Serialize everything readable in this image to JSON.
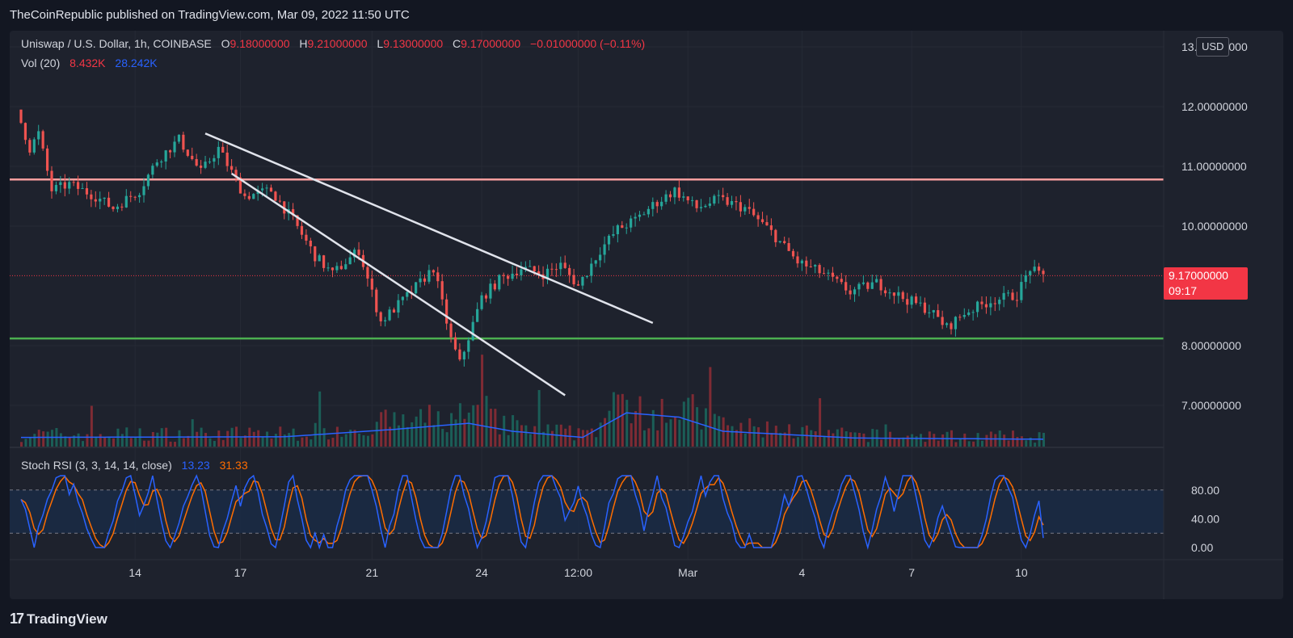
{
  "header": {
    "published_text": "TheCoinRepublic published on TradingView.com, Mar 09, 2022 11:50 UTC"
  },
  "legend": {
    "symbol": "Uniswap / U.S. Dollar, 1h, COINBASE",
    "open_label": "O",
    "open": "9.18000000",
    "high_label": "H",
    "high": "9.21000000",
    "low_label": "L",
    "low": "9.13000000",
    "close_label": "C",
    "close": "9.17000000",
    "change": "−0.01000000 (−0.11%)",
    "vol_label": "Vol (20)",
    "vol_value": "8.432K",
    "vol_ma": "28.242K",
    "stoch_label": "Stoch RSI (3, 3, 14, 14, close)",
    "stoch_k": "13.23",
    "stoch_d": "31.33"
  },
  "price_scale": {
    "currency": "USD",
    "current_price": "9.17000000",
    "countdown": "09:17"
  },
  "footer": {
    "brand": "TradingView",
    "logo_glyph": "17"
  },
  "colors": {
    "background": "#131722",
    "pane": "#1e222d",
    "up": "#26a69a",
    "down": "#ef5350",
    "resistance": "#ff9e9e",
    "support": "#4caf50",
    "current_price_line": "#f23645",
    "volume_ma": "#2962ff",
    "stoch_k": "#2962ff",
    "stoch_d": "#ff6d00",
    "trendline": "#e0e3eb"
  },
  "chart_data": [
    {
      "type": "candlestick",
      "series_name": "Uniswap / U.S. Dollar, 1h, COINBASE",
      "x_ticks": [
        "14",
        "17",
        "21",
        "24",
        "12:00",
        "Mar",
        "4",
        "7",
        "10"
      ],
      "y_ticks": [
        "13.00000000",
        "12.00000000",
        "11.00000000",
        "10.00000000",
        "8.00000000",
        "7.00000000"
      ],
      "ylim": [
        6.5,
        13.2
      ],
      "price_path": [
        {
          "t": 0,
          "p": 11.95
        },
        {
          "t": 3,
          "p": 11.3
        },
        {
          "t": 5,
          "p": 11.55
        },
        {
          "t": 8,
          "p": 10.6
        },
        {
          "t": 12,
          "p": 10.7
        },
        {
          "t": 18,
          "p": 10.5
        },
        {
          "t": 22,
          "p": 10.3
        },
        {
          "t": 28,
          "p": 10.6
        },
        {
          "t": 32,
          "p": 11.1
        },
        {
          "t": 37,
          "p": 11.45
        },
        {
          "t": 42,
          "p": 10.9
        },
        {
          "t": 46,
          "p": 11.3
        },
        {
          "t": 52,
          "p": 10.5
        },
        {
          "t": 58,
          "p": 10.6
        },
        {
          "t": 63,
          "p": 10.1
        },
        {
          "t": 68,
          "p": 9.5
        },
        {
          "t": 72,
          "p": 9.2
        },
        {
          "t": 78,
          "p": 9.6
        },
        {
          "t": 83,
          "p": 8.4
        },
        {
          "t": 90,
          "p": 8.9
        },
        {
          "t": 95,
          "p": 9.3
        },
        {
          "t": 99,
          "p": 8.1
        },
        {
          "t": 101,
          "p": 7.7
        },
        {
          "t": 106,
          "p": 8.8
        },
        {
          "t": 110,
          "p": 9.1
        },
        {
          "t": 115,
          "p": 9.3
        },
        {
          "t": 120,
          "p": 9.2
        },
        {
          "t": 124,
          "p": 9.35
        },
        {
          "t": 128,
          "p": 9.0
        },
        {
          "t": 133,
          "p": 9.6
        },
        {
          "t": 137,
          "p": 9.95
        },
        {
          "t": 141,
          "p": 10.1
        },
        {
          "t": 145,
          "p": 10.35
        },
        {
          "t": 150,
          "p": 10.6
        },
        {
          "t": 155,
          "p": 10.3
        },
        {
          "t": 160,
          "p": 10.45
        },
        {
          "t": 166,
          "p": 10.3
        },
        {
          "t": 172,
          "p": 9.9
        },
        {
          "t": 178,
          "p": 9.4
        },
        {
          "t": 184,
          "p": 9.2
        },
        {
          "t": 190,
          "p": 8.9
        },
        {
          "t": 196,
          "p": 9.05
        },
        {
          "t": 202,
          "p": 8.8
        },
        {
          "t": 208,
          "p": 8.6
        },
        {
          "t": 212,
          "p": 8.3
        },
        {
          "t": 216,
          "p": 8.55
        },
        {
          "t": 222,
          "p": 8.75
        },
        {
          "t": 228,
          "p": 8.85
        },
        {
          "t": 231,
          "p": 9.3
        },
        {
          "t": 233,
          "p": 9.17
        }
      ],
      "volume_ma_path": [
        {
          "t": 0,
          "v": 0.15
        },
        {
          "t": 60,
          "v": 0.16
        },
        {
          "t": 85,
          "v": 0.28
        },
        {
          "t": 102,
          "v": 0.38
        },
        {
          "t": 112,
          "v": 0.25
        },
        {
          "t": 128,
          "v": 0.15
        },
        {
          "t": 138,
          "v": 0.55
        },
        {
          "t": 150,
          "v": 0.48
        },
        {
          "t": 160,
          "v": 0.25
        },
        {
          "t": 190,
          "v": 0.14
        },
        {
          "t": 233,
          "v": 0.12
        }
      ],
      "horizontal_levels": [
        {
          "role": "resistance",
          "price": 10.78
        },
        {
          "role": "support",
          "price": 8.12
        },
        {
          "role": "current",
          "price": 9.17
        }
      ],
      "trendlines": [
        {
          "from": {
            "t": 42,
            "p": 11.55
          },
          "to": {
            "t": 144,
            "p": 8.38
          }
        },
        {
          "from": {
            "t": 48,
            "p": 10.88
          },
          "to": {
            "t": 124,
            "p": 7.17
          }
        }
      ]
    },
    {
      "type": "line",
      "series_name": "Stoch RSI (3, 3, 14, 14, close)",
      "y_ticks": [
        "80.00",
        "40.00",
        "0.00"
      ],
      "ylim": [
        0,
        100
      ],
      "band": [
        20,
        80
      ],
      "series": [
        {
          "name": "K",
          "last": 13.23
        },
        {
          "name": "D",
          "last": 31.33
        }
      ]
    }
  ]
}
